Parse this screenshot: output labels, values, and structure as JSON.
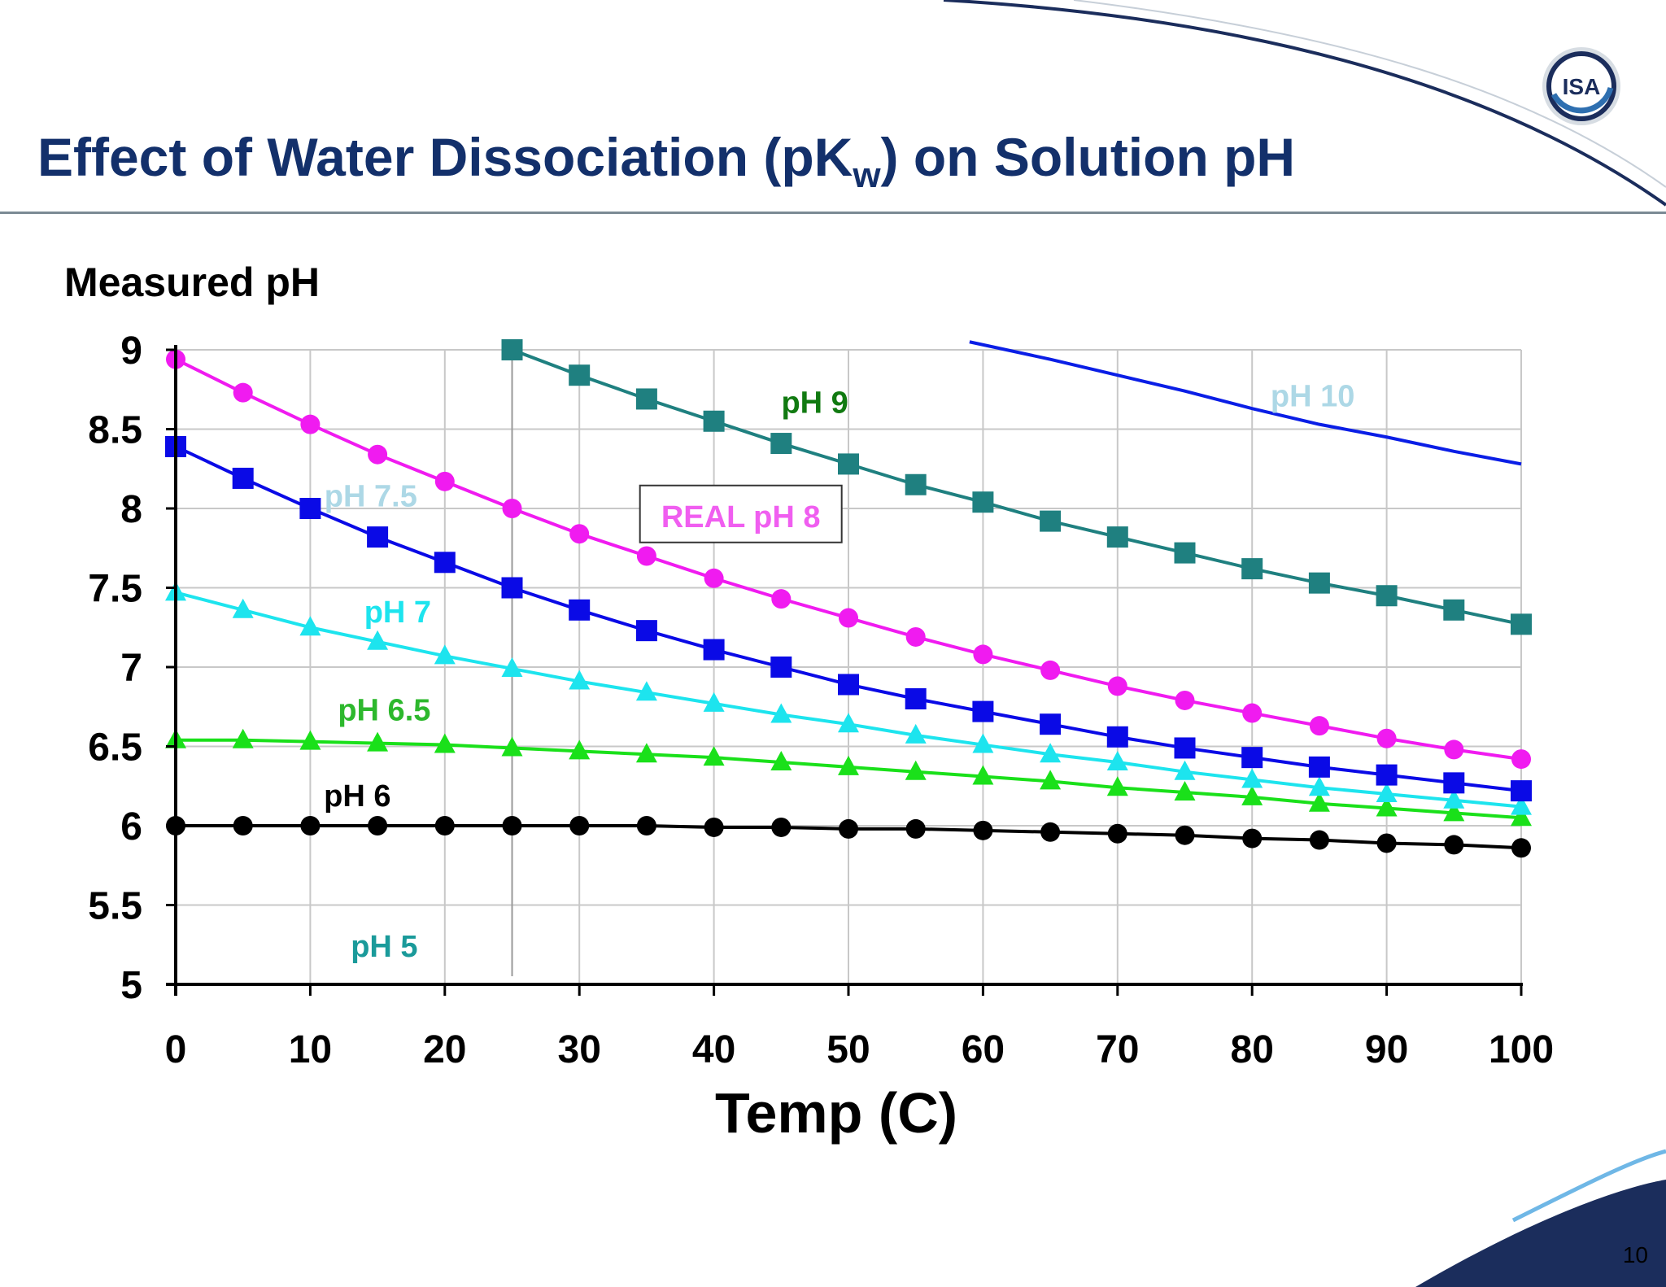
{
  "slide": {
    "title_main": "Effect of Water Dissociation (pK",
    "title_sub": "w",
    "title_tail": ") on Solution pH",
    "page_number": "10",
    "logo_text": "ISA"
  },
  "chart_data": {
    "type": "line",
    "title": "Effect of Water Dissociation (pKw) on Solution pH",
    "ylabel": "Measured pH",
    "xlabel": "Temp (C)",
    "xlim": [
      0,
      100
    ],
    "ylim": [
      5,
      9
    ],
    "xticks": [
      0,
      10,
      20,
      30,
      40,
      50,
      60,
      70,
      80,
      90,
      100
    ],
    "yticks": [
      5,
      5.5,
      6,
      6.5,
      7,
      7.5,
      8,
      8.5,
      9
    ],
    "ytick_labels": [
      "5",
      "5.5",
      "6",
      "6.5",
      "7",
      "7.5",
      "8",
      "8.5",
      "9"
    ],
    "x": [
      0,
      5,
      10,
      15,
      20,
      25,
      30,
      35,
      40,
      45,
      50,
      55,
      60,
      65,
      70,
      75,
      80,
      85,
      90,
      95,
      100
    ],
    "reference_line_x": 25,
    "series": [
      {
        "name": "pH 5",
        "color": "#e8141b",
        "marker": "none",
        "values": [
          5,
          5,
          5,
          5,
          5,
          5,
          5,
          5,
          5,
          5,
          5,
          5,
          5,
          5,
          5,
          5,
          5,
          5,
          5,
          5,
          5
        ]
      },
      {
        "name": "pH 6",
        "color": "#000000",
        "marker": "circle",
        "values": [
          6.0,
          6.0,
          6.0,
          6.0,
          6.0,
          6.0,
          6.0,
          6.0,
          5.99,
          5.99,
          5.98,
          5.98,
          5.97,
          5.96,
          5.95,
          5.94,
          5.92,
          5.91,
          5.89,
          5.88,
          5.86
        ]
      },
      {
        "name": "pH 6.5",
        "color": "#1ae01a",
        "marker": "triangle",
        "values": [
          6.54,
          6.54,
          6.53,
          6.52,
          6.51,
          6.49,
          6.47,
          6.45,
          6.43,
          6.4,
          6.37,
          6.34,
          6.31,
          6.28,
          6.24,
          6.21,
          6.18,
          6.14,
          6.11,
          6.08,
          6.05
        ]
      },
      {
        "name": "pH 7",
        "color": "#1de4ee",
        "marker": "triangle",
        "values": [
          7.47,
          7.36,
          7.25,
          7.16,
          7.07,
          6.99,
          6.91,
          6.84,
          6.77,
          6.7,
          6.64,
          6.57,
          6.51,
          6.45,
          6.4,
          6.34,
          6.29,
          6.24,
          6.2,
          6.16,
          6.12
        ]
      },
      {
        "name": "pH 7.5",
        "color": "#0a0ae6",
        "marker": "square",
        "values": [
          8.39,
          8.19,
          8.0,
          7.82,
          7.66,
          7.5,
          7.36,
          7.23,
          7.11,
          7.0,
          6.89,
          6.8,
          6.72,
          6.64,
          6.56,
          6.49,
          6.43,
          6.37,
          6.32,
          6.27,
          6.22
        ]
      },
      {
        "name": "REAL pH 8",
        "color": "#f01bf0",
        "marker": "circle",
        "values": [
          8.94,
          8.73,
          8.53,
          8.34,
          8.17,
          8.0,
          7.84,
          7.7,
          7.56,
          7.43,
          7.31,
          7.19,
          7.08,
          6.98,
          6.88,
          6.79,
          6.71,
          6.63,
          6.55,
          6.48,
          6.42
        ]
      },
      {
        "name": "pH 9",
        "color": "#1f8080",
        "marker": "square",
        "x": [
          25,
          30,
          35,
          40,
          45,
          50,
          55,
          60,
          65,
          70,
          75,
          80,
          85,
          90,
          95,
          100
        ],
        "values": [
          9.0,
          8.84,
          8.69,
          8.55,
          8.41,
          8.28,
          8.15,
          8.04,
          7.92,
          7.82,
          7.72,
          7.62,
          7.53,
          7.45,
          7.36,
          7.27
        ]
      },
      {
        "name": "pH 10",
        "color": "#0a1ee6",
        "marker": "none",
        "x": [
          59,
          65,
          70,
          75,
          80,
          85,
          90,
          95,
          100
        ],
        "values": [
          9.05,
          8.94,
          8.84,
          8.74,
          8.63,
          8.53,
          8.45,
          8.36,
          8.28
        ]
      }
    ],
    "annotations": [
      {
        "text": "pH 10",
        "color": "#add8e6",
        "x": 84.5,
        "y": 8.71
      },
      {
        "text": "pH 9",
        "color": "#117a11",
        "x": 47.5,
        "y": 8.67
      },
      {
        "text": "pH 7.5",
        "color": "#add8e6",
        "x": 14.5,
        "y": 8.08
      },
      {
        "text": "REAL pH 8",
        "color": "#f05ef0",
        "x": 42,
        "y": 7.95,
        "boxed": true
      },
      {
        "text": "pH 7",
        "color": "#1de4ee",
        "x": 16.5,
        "y": 7.35
      },
      {
        "text": "pH 6.5",
        "color": "#2db82d",
        "x": 15.5,
        "y": 6.73
      },
      {
        "text": "pH 6",
        "color": "#000000",
        "x": 13.5,
        "y": 6.19
      },
      {
        "text": "pH 5",
        "color": "#1a9a9a",
        "x": 15.5,
        "y": 5.24
      }
    ]
  }
}
